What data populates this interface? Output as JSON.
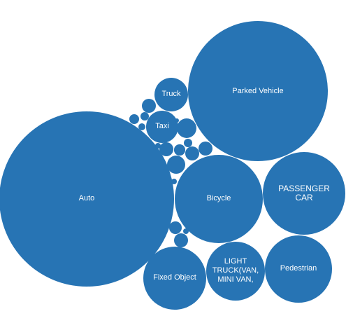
{
  "chart_data": {
    "type": "bubble",
    "color": "#2774b4",
    "categories": [
      "Auto",
      "Parked Vehicle",
      "Bicycle",
      "PASSENGER CAR",
      "Pedestrian",
      "LIGHT TRUCK(VAN, MINI VAN,",
      "Fixed Object",
      "Truck",
      "Taxi",
      null,
      null,
      null,
      null,
      null,
      null,
      null,
      null,
      null,
      null,
      null,
      null,
      null,
      null,
      null,
      null,
      null
    ],
    "values": [
      1563,
      1000,
      397,
      348,
      230,
      176,
      203,
      58,
      53,
      10,
      4,
      5,
      2.5,
      20,
      1,
      10,
      6,
      4,
      10,
      10,
      17,
      2,
      2,
      8,
      10,
      2
    ]
  }
}
